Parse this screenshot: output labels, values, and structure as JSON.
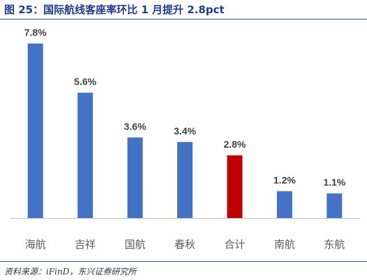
{
  "figure": {
    "title": "图 25：国际航线客座率环比 1 月提升 2.8pct",
    "source": "资料来源：iFinD，东兴证券研究所"
  },
  "chart_data": {
    "type": "bar",
    "title": "",
    "xlabel": "",
    "ylabel": "",
    "categories": [
      "海航",
      "吉祥",
      "国航",
      "春秋",
      "合计",
      "南航",
      "东航"
    ],
    "values": [
      7.8,
      5.6,
      3.6,
      3.4,
      2.8,
      1.2,
      1.1
    ],
    "data_labels": [
      "7.8%",
      "5.6%",
      "3.6%",
      "3.4%",
      "2.8%",
      "1.2%",
      "1.1%"
    ],
    "ylim": [
      0,
      8.5
    ],
    "grid": false,
    "legend": "none",
    "colors": {
      "default": "#4472c4",
      "highlight": "#c00000",
      "highlight_category": "合计",
      "axis": "#bfbfbf",
      "label": "#404040",
      "category": "#595959"
    }
  }
}
